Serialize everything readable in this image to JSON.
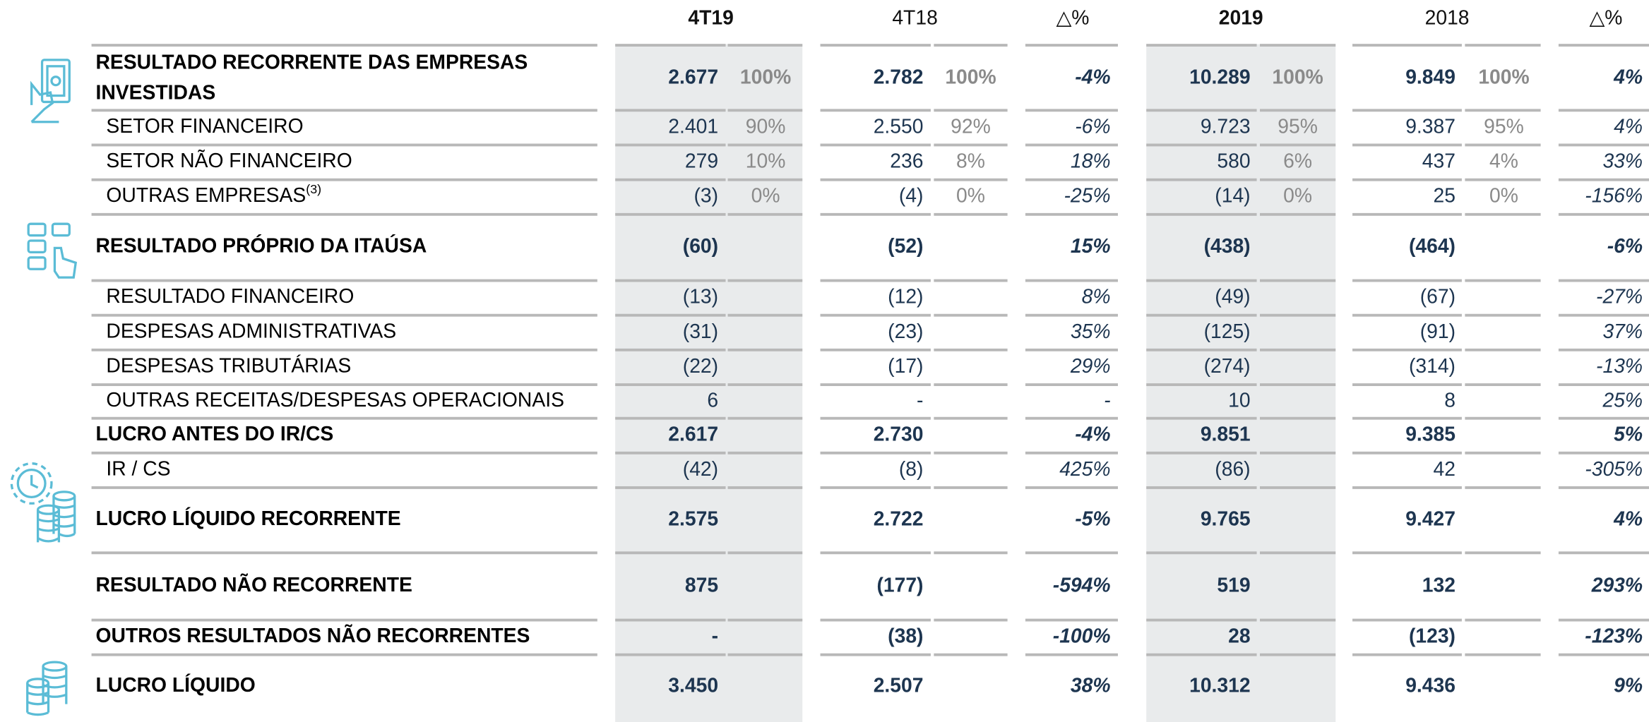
{
  "header": [
    "4T19",
    "4T18",
    "△%",
    "2019",
    "2018",
    "△%"
  ],
  "rows": [
    {
      "label": [
        "RESULTADO RECORRENTE DAS EMPRESAS",
        "INVESTIDAS"
      ],
      "bold": true,
      "cells": [
        "2.677",
        "100%",
        "2.782",
        "100%",
        "-4%",
        "10.289",
        "100%",
        "9.849",
        "100%",
        "4%"
      ]
    },
    {
      "label": "SETOR FINANCEIRO",
      "cells": [
        "2.401",
        "90%",
        "2.550",
        "92%",
        "-6%",
        "9.723",
        "95%",
        "9.387",
        "95%",
        "4%"
      ]
    },
    {
      "label": "SETOR NÃO FINANCEIRO",
      "cells": [
        "279",
        "10%",
        "236",
        "8%",
        "18%",
        "580",
        "6%",
        "437",
        "4%",
        "33%"
      ]
    },
    {
      "label": "OUTRAS EMPRESAS",
      "note": "(3)",
      "cells": [
        "(3)",
        "0%",
        "(4)",
        "0%",
        "-25%",
        "(14)",
        "0%",
        "25",
        "0%",
        "-156%"
      ]
    },
    {
      "label": "RESULTADO PRÓPRIO DA ITAÚSA",
      "bold": true,
      "cells": [
        "(60)",
        null,
        "(52)",
        null,
        "15%",
        "(438)",
        null,
        "(464)",
        null,
        "-6%"
      ]
    },
    {
      "label": "RESULTADO FINANCEIRO",
      "cells": [
        "(13)",
        null,
        "(12)",
        null,
        "8%",
        "(49)",
        null,
        "(67)",
        null,
        "-27%"
      ]
    },
    {
      "label": "DESPESAS ADMINISTRATIVAS",
      "cells": [
        "(31)",
        null,
        "(23)",
        null,
        "35%",
        "(125)",
        null,
        "(91)",
        null,
        "37%"
      ]
    },
    {
      "label": "DESPESAS TRIBUTÁRIAS",
      "cells": [
        "(22)",
        null,
        "(17)",
        null,
        "29%",
        "(274)",
        null,
        "(314)",
        null,
        "-13%"
      ]
    },
    {
      "label": "OUTRAS RECEITAS/DESPESAS OPERACIONAIS",
      "cells": [
        "6",
        null,
        "-",
        null,
        "-",
        "10",
        null,
        "8",
        null,
        "25%"
      ]
    },
    {
      "label": "LUCRO ANTES DO IR/CS",
      "bold": true,
      "cells": [
        "2.617",
        null,
        "2.730",
        null,
        "-4%",
        "9.851",
        null,
        "9.385",
        null,
        "5%"
      ]
    },
    {
      "label": "IR / CS",
      "cells": [
        "(42)",
        null,
        "(8)",
        null,
        "425%",
        "(86)",
        null,
        "42",
        null,
        "-305%"
      ]
    },
    {
      "label": "LUCRO LÍQUIDO RECORRENTE",
      "bold": true,
      "cells": [
        "2.575",
        null,
        "2.722",
        null,
        "-5%",
        "9.765",
        null,
        "9.427",
        null,
        "4%"
      ]
    },
    {
      "label": "RESULTADO NÃO RECORRENTE",
      "bold": true,
      "cells": [
        "875",
        null,
        "(177)",
        null,
        "-594%",
        "519",
        null,
        "132",
        null,
        "293%"
      ]
    },
    {
      "label": "OUTROS RESULTADOS NÃO RECORRENTES",
      "bold": true,
      "cells": [
        "-",
        null,
        "(38)",
        null,
        "-100%",
        "28",
        null,
        "(123)",
        null,
        "-123%"
      ]
    },
    {
      "label": "LUCRO LÍQUIDO",
      "bold": true,
      "cells": [
        "3.450",
        null,
        "2.507",
        null,
        "38%",
        "10.312",
        null,
        "9.436",
        null,
        "9%"
      ]
    }
  ]
}
